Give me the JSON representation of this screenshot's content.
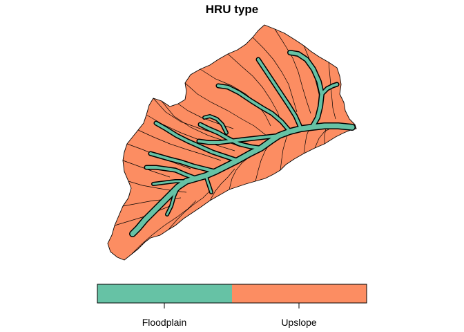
{
  "title": "HRU type",
  "legend": {
    "items": [
      {
        "label": "Floodplain",
        "color": "#66C2A5"
      },
      {
        "label": "Upslope",
        "color": "#FC8D62"
      }
    ]
  },
  "map": {
    "subject": "watershed HRU classification",
    "boundary_color": "#000000"
  }
}
